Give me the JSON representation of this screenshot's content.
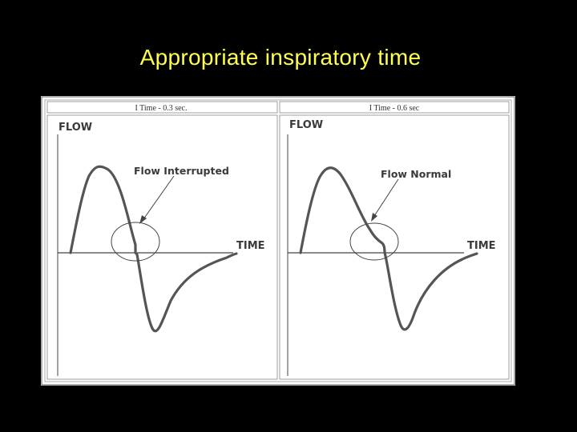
{
  "slide": {
    "title": "Appropriate inspiratory time"
  },
  "figure": {
    "left_panel": {
      "header": "I Time - 0.3 sec.",
      "y_label": "FLOW",
      "x_label": "TIME",
      "annotation": "Flow Interrupted"
    },
    "right_panel": {
      "header": "I Time - 0.6 sec",
      "y_label": "FLOW",
      "x_label": "TIME",
      "annotation": "Flow Normal"
    }
  },
  "colors": {
    "background": "#000000",
    "title": "#FFFF4D",
    "waveform": "#555555",
    "figure_bg": "#FFFFFF"
  }
}
